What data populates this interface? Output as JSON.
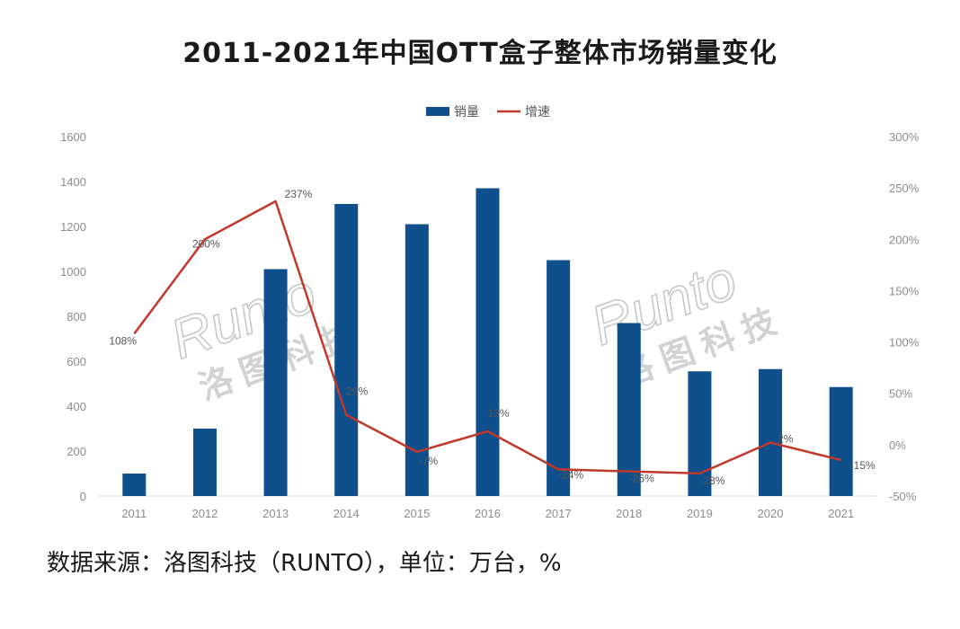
{
  "title": "2011-2021年中国OTT盒子整体市场销量变化",
  "source": "数据来源：洛图科技（RUNTO），单位：万台，%",
  "watermark": {
    "latin": "Runto",
    "cn": "洛图科技"
  },
  "colors": {
    "bar": "#0f4f8c",
    "line": "#c0392b"
  },
  "chart_data": {
    "type": "bar",
    "categories": [
      "2011",
      "2012",
      "2013",
      "2014",
      "2015",
      "2016",
      "2017",
      "2018",
      "2019",
      "2020",
      "2021"
    ],
    "series": [
      {
        "name": "销量",
        "type": "bar",
        "axis": "left",
        "values": [
          100,
          300,
          1010,
          1300,
          1210,
          1370,
          1050,
          770,
          555,
          565,
          485
        ]
      },
      {
        "name": "增速",
        "type": "line",
        "axis": "right",
        "values": [
          108,
          200,
          237,
          29,
          -7,
          13,
          -24,
          -26,
          -28,
          2,
          -15
        ],
        "labels": [
          "108%",
          "200%",
          "237%",
          "29%",
          "-7%",
          "13%",
          "-24%",
          "-26%",
          "-28%",
          "2%",
          "-15%"
        ]
      }
    ],
    "y_left": {
      "range": [
        0,
        1600
      ],
      "ticks": [
        "0",
        "200",
        "400",
        "600",
        "800",
        "1000",
        "1200",
        "1400",
        "1600"
      ]
    },
    "y_right": {
      "range": [
        -50,
        300
      ],
      "ticks": [
        "-50%",
        "0%",
        "50%",
        "100%",
        "150%",
        "200%",
        "250%",
        "300%"
      ]
    },
    "legend": "top-center",
    "grid": false
  }
}
